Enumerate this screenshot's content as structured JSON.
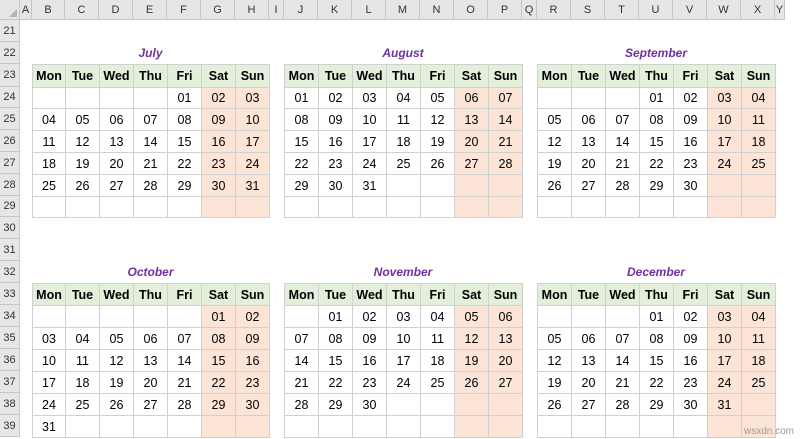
{
  "sheet": {
    "columns": [
      "A",
      "B",
      "C",
      "D",
      "E",
      "F",
      "G",
      "H",
      "I",
      "J",
      "K",
      "L",
      "M",
      "N",
      "O",
      "P",
      "Q",
      "R",
      "S",
      "T",
      "U",
      "V",
      "W",
      "X",
      "Y"
    ],
    "rows": [
      "21",
      "22",
      "23",
      "24",
      "25",
      "26",
      "27",
      "28",
      "29",
      "30",
      "31",
      "32",
      "33",
      "34",
      "35",
      "36",
      "37",
      "38",
      "39"
    ]
  },
  "weekday_headers": [
    "Mon",
    "Tue",
    "Wed",
    "Thu",
    "Fri",
    "Sat",
    "Sun"
  ],
  "calendars": [
    {
      "month": "July",
      "weeks": [
        [
          "",
          "",
          "",
          "",
          "01",
          "02",
          "03"
        ],
        [
          "04",
          "05",
          "06",
          "07",
          "08",
          "09",
          "10"
        ],
        [
          "11",
          "12",
          "13",
          "14",
          "15",
          "16",
          "17"
        ],
        [
          "18",
          "19",
          "20",
          "21",
          "22",
          "23",
          "24"
        ],
        [
          "25",
          "26",
          "27",
          "28",
          "29",
          "30",
          "31"
        ],
        [
          "",
          "",
          "",
          "",
          "",
          "",
          ""
        ]
      ]
    },
    {
      "month": "August",
      "weeks": [
        [
          "01",
          "02",
          "03",
          "04",
          "05",
          "06",
          "07"
        ],
        [
          "08",
          "09",
          "10",
          "11",
          "12",
          "13",
          "14"
        ],
        [
          "15",
          "16",
          "17",
          "18",
          "19",
          "20",
          "21"
        ],
        [
          "22",
          "23",
          "24",
          "25",
          "26",
          "27",
          "28"
        ],
        [
          "29",
          "30",
          "31",
          "",
          "",
          "",
          ""
        ],
        [
          "",
          "",
          "",
          "",
          "",
          "",
          ""
        ]
      ]
    },
    {
      "month": "September",
      "weeks": [
        [
          "",
          "",
          "",
          "01",
          "02",
          "03",
          "04"
        ],
        [
          "05",
          "06",
          "07",
          "08",
          "09",
          "10",
          "11"
        ],
        [
          "12",
          "13",
          "14",
          "15",
          "16",
          "17",
          "18"
        ],
        [
          "19",
          "20",
          "21",
          "22",
          "23",
          "24",
          "25"
        ],
        [
          "26",
          "27",
          "28",
          "29",
          "30",
          "",
          ""
        ],
        [
          "",
          "",
          "",
          "",
          "",
          "",
          ""
        ]
      ]
    },
    {
      "month": "October",
      "weeks": [
        [
          "",
          "",
          "",
          "",
          "",
          "01",
          "02"
        ],
        [
          "03",
          "04",
          "05",
          "06",
          "07",
          "08",
          "09"
        ],
        [
          "10",
          "11",
          "12",
          "13",
          "14",
          "15",
          "16"
        ],
        [
          "17",
          "18",
          "19",
          "20",
          "21",
          "22",
          "23"
        ],
        [
          "24",
          "25",
          "26",
          "27",
          "28",
          "29",
          "30"
        ],
        [
          "31",
          "",
          "",
          "",
          "",
          "",
          ""
        ]
      ]
    },
    {
      "month": "November",
      "weeks": [
        [
          "",
          "01",
          "02",
          "03",
          "04",
          "05",
          "06"
        ],
        [
          "07",
          "08",
          "09",
          "10",
          "11",
          "12",
          "13"
        ],
        [
          "14",
          "15",
          "16",
          "17",
          "18",
          "19",
          "20"
        ],
        [
          "21",
          "22",
          "23",
          "24",
          "25",
          "26",
          "27"
        ],
        [
          "28",
          "29",
          "30",
          "",
          "",
          "",
          ""
        ],
        [
          "",
          "",
          "",
          "",
          "",
          "",
          ""
        ]
      ]
    },
    {
      "month": "December",
      "weeks": [
        [
          "",
          "",
          "",
          "01",
          "02",
          "03",
          "04"
        ],
        [
          "05",
          "06",
          "07",
          "08",
          "09",
          "10",
          "11"
        ],
        [
          "12",
          "13",
          "14",
          "15",
          "16",
          "17",
          "18"
        ],
        [
          "19",
          "20",
          "21",
          "22",
          "23",
          "24",
          "25"
        ],
        [
          "26",
          "27",
          "28",
          "29",
          "30",
          "31",
          ""
        ],
        [
          "",
          "",
          "",
          "",
          "",
          "",
          ""
        ]
      ]
    }
  ],
  "watermark": "wsxdn.com",
  "colors": {
    "header_fill": "#e2efda",
    "weekend_fill": "#fce4d6",
    "title": "#7030a0"
  }
}
